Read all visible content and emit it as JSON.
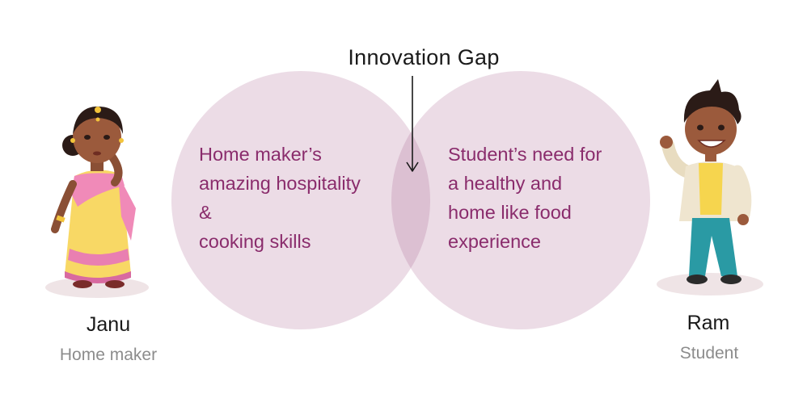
{
  "title": "Innovation Gap",
  "left_circle": {
    "lines": [
      "Home maker’s",
      "amazing hospitality",
      "&",
      "cooking skills"
    ]
  },
  "right_circle": {
    "lines": [
      "Student’s need for",
      "a healthy and",
      "home like food",
      "experience"
    ]
  },
  "left_person": {
    "name": "Janu",
    "role": "Home maker"
  },
  "right_person": {
    "name": "Ram",
    "role": "Student"
  },
  "colors": {
    "circle_fill": "#ecdce6",
    "overlap_fill": "#dcc0d2",
    "circle_text": "#8a2c6c",
    "label_dark": "#1a1a1a",
    "label_gray": "#8c8c8c"
  }
}
